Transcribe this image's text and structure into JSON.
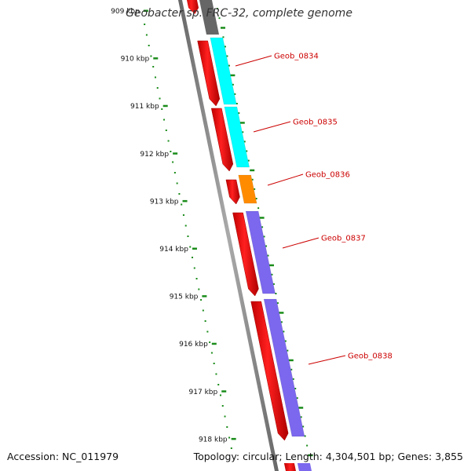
{
  "title": "Geobacter sp. FRC-32, complete genome",
  "footer": {
    "accession_prefix": "Accession:",
    "accession": "NC_011979",
    "topology_prefix": "Topology:",
    "topology": "circular",
    "length_prefix": "Length:",
    "length": "4,304,501 bp",
    "genes_prefix": "Genes:",
    "genes": "3,855"
  },
  "ruler": {
    "labels": [
      "909 kbp",
      "910 kbp",
      "911 kbp",
      "912 kbp",
      "913 kbp",
      "914 kbp",
      "915 kbp",
      "916 kbp",
      "917 kbp",
      "918 kbp"
    ]
  },
  "genes": [
    {
      "label": "Geob_0834",
      "track_color": "#00ffff"
    },
    {
      "label": "Geob_0835",
      "track_color": "#00ffff"
    },
    {
      "label": "Geob_0836",
      "track_color": "#ff8c00"
    },
    {
      "label": "Geob_0837",
      "track_color": "#7b68ee"
    },
    {
      "label": "Geob_0838",
      "track_color": "#7b68ee"
    }
  ],
  "colors": {
    "strand": "#ff0000",
    "previous_gene": "#666666",
    "backbone": "#888888",
    "tick": "#1a8c1a",
    "gene_label": "#cc0000",
    "leader_line": "#cc0000"
  }
}
